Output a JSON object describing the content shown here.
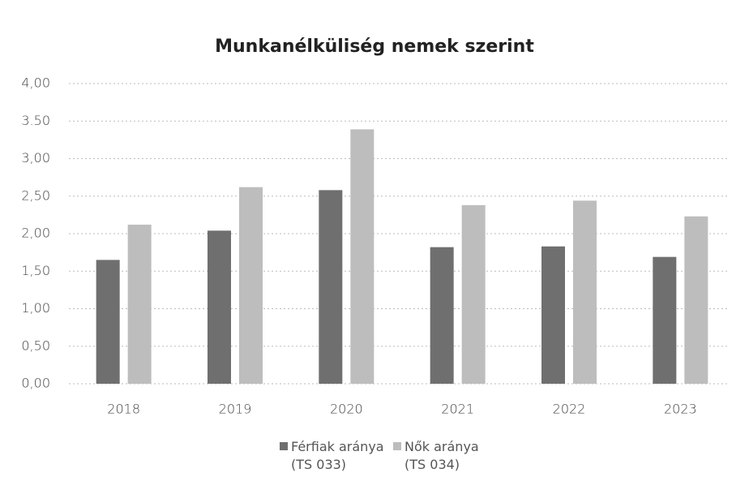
{
  "chart_data": {
    "type": "bar",
    "title": "Munkanélküliség nemek szerint",
    "categories": [
      "2018",
      "2019",
      "2020",
      "2021",
      "2022",
      "2023"
    ],
    "series": [
      {
        "name": "Férfiak aránya (TS 033)",
        "color": "#6f6f6f",
        "values": [
          1.65,
          2.04,
          2.58,
          1.82,
          1.83,
          1.69
        ]
      },
      {
        "name": "Nők aránya (TS 034)",
        "color": "#bdbdbd",
        "values": [
          2.12,
          2.62,
          3.39,
          2.38,
          2.44,
          2.23
        ]
      }
    ],
    "ylim": [
      0,
      4
    ],
    "yticks": [
      {
        "value": 0,
        "label": "0,00"
      },
      {
        "value": 0.5,
        "label": "0,50"
      },
      {
        "value": 1,
        "label": "1,00"
      },
      {
        "value": 1.5,
        "label": "1,50"
      },
      {
        "value": 2,
        "label": "2,00"
      },
      {
        "value": 2.5,
        "label": "2,50"
      },
      {
        "value": 3,
        "label": "3,00"
      },
      {
        "value": 3.5,
        "label": "3.50"
      },
      {
        "value": 4,
        "label": "4,00"
      }
    ],
    "grid": true,
    "legend": "bottom"
  }
}
